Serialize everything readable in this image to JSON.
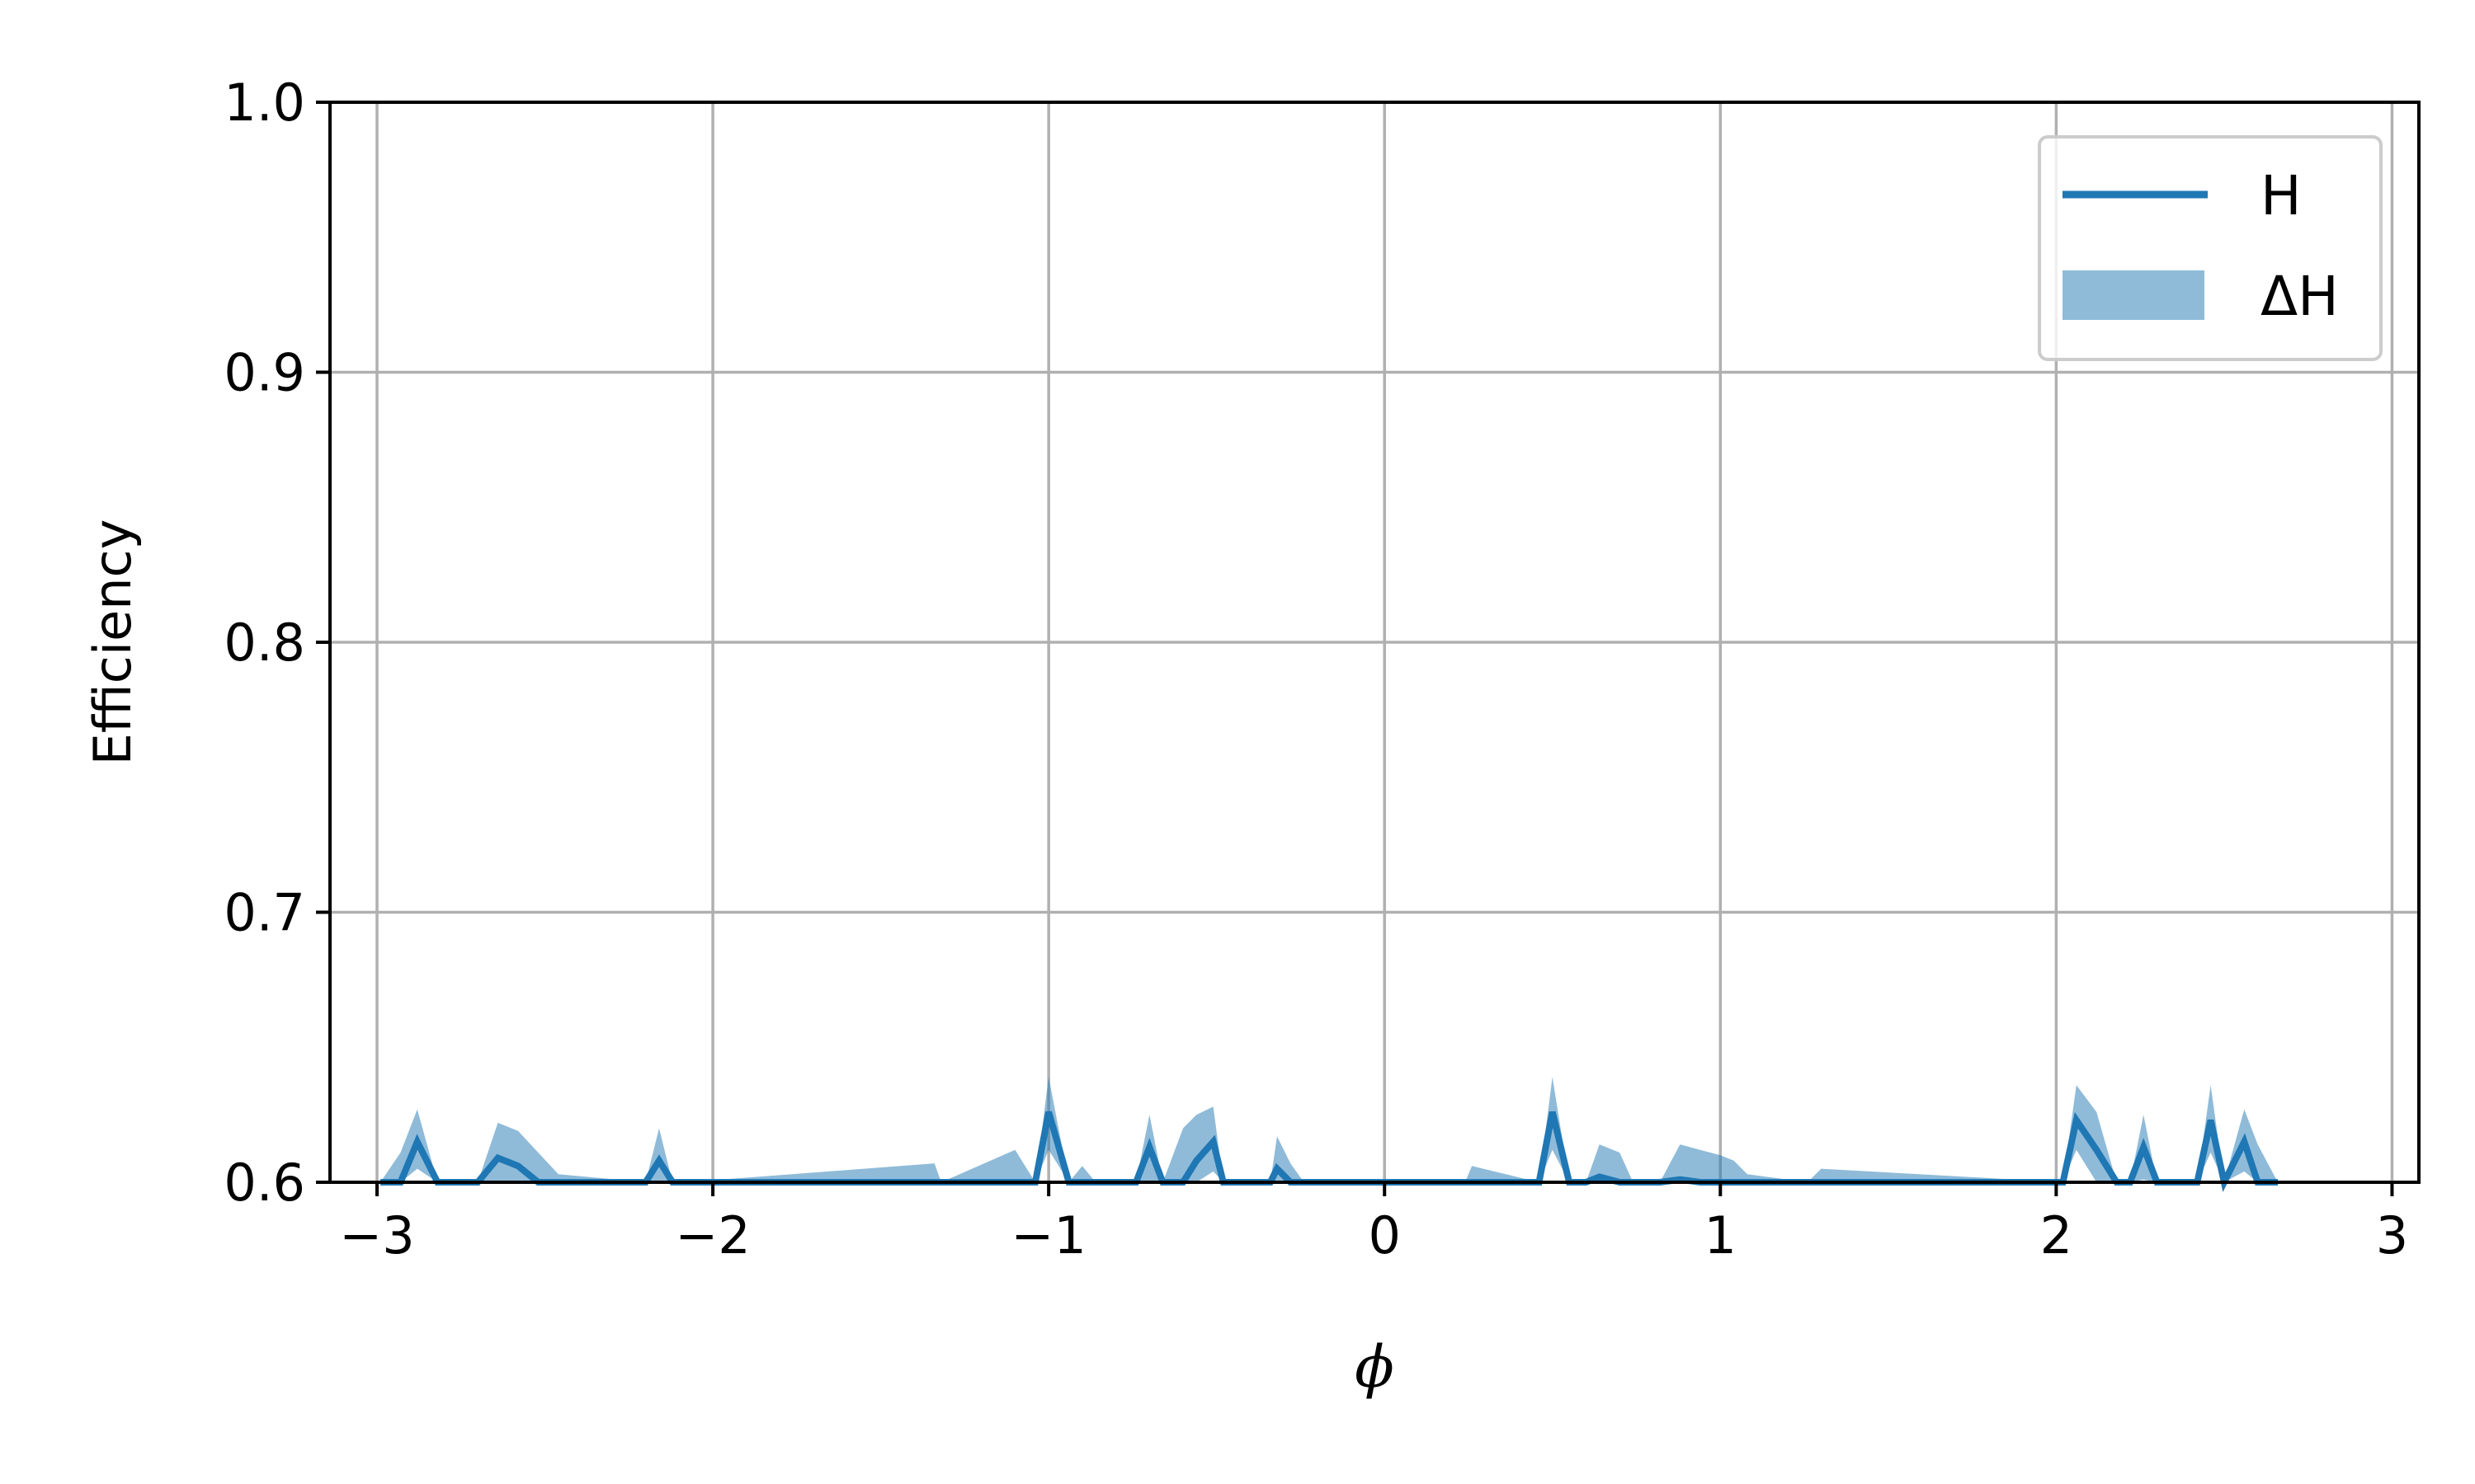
{
  "chart_data": {
    "type": "line",
    "xlabel": "ϕ",
    "ylabel": "Efficiency",
    "xlim": [
      -3.14,
      3.08
    ],
    "ylim": [
      0.6,
      1.0
    ],
    "x_ticks": [
      -3,
      -2,
      -1,
      0,
      1,
      2,
      3
    ],
    "x_tick_labels": [
      "−3",
      "−2",
      "−1",
      "0",
      "1",
      "2",
      "3"
    ],
    "y_ticks": [
      0.6,
      0.7,
      0.8,
      0.9,
      1.0
    ],
    "y_tick_labels": [
      "0.6",
      "0.7",
      "0.8",
      "0.9",
      "1.0"
    ],
    "grid": true,
    "legend": {
      "position": "top-right",
      "entries": [
        {
          "label": "H",
          "kind": "line"
        },
        {
          "label": "ΔH",
          "kind": "band"
        }
      ]
    },
    "colors": {
      "line": "#1f77b4",
      "band": "#1f77b4",
      "grid": "#b0b0b0"
    },
    "x": [
      -2.99,
      -2.93,
      -2.88,
      -2.82,
      -2.76,
      -2.7,
      -2.64,
      -2.58,
      -2.52,
      -2.46,
      -2.2,
      -2.16,
      -2.12,
      -2.08,
      -1.34,
      -1.32,
      -1.1,
      -1.04,
      -1.0,
      -0.94,
      -0.9,
      -0.86,
      -0.74,
      -0.7,
      -0.66,
      -0.6,
      -0.56,
      -0.51,
      -0.48,
      -0.34,
      -0.32,
      -0.28,
      -0.24,
      0.24,
      0.26,
      0.46,
      0.5,
      0.55,
      0.6,
      0.64,
      0.7,
      0.74,
      0.82,
      0.88,
      0.94,
      1.0,
      1.04,
      1.08,
      1.26,
      1.3,
      2.02,
      2.06,
      2.12,
      2.18,
      2.22,
      2.26,
      2.3,
      2.42,
      2.46,
      2.5,
      2.56,
      2.6,
      2.66
    ],
    "series": [
      {
        "name": "H",
        "values": [
          0.6,
          0.6,
          0.615,
          0.6,
          0.6,
          0.6,
          0.609,
          0.606,
          0.6,
          0.6,
          0.6,
          0.608,
          0.6,
          0.6,
          0.6,
          0.6,
          0.6,
          0.6,
          0.626,
          0.6,
          0.6,
          0.6,
          0.6,
          0.613,
          0.6,
          0.6,
          0.608,
          0.615,
          0.6,
          0.6,
          0.605,
          0.6,
          0.6,
          0.6,
          0.6,
          0.6,
          0.626,
          0.6,
          0.6,
          0.602,
          0.6,
          0.6,
          0.6,
          0.601,
          0.6,
          0.6,
          0.6,
          0.6,
          0.6,
          0.6,
          0.6,
          0.623,
          0.612,
          0.6,
          0.6,
          0.613,
          0.6,
          0.6,
          0.623,
          0.6,
          0.615,
          0.6,
          0.6
        ]
      },
      {
        "name": "ΔH",
        "lower": [
          0.6,
          0.6,
          0.605,
          0.6,
          0.6,
          0.6,
          0.6,
          0.6,
          0.6,
          0.6,
          0.6,
          0.6,
          0.6,
          0.6,
          0.6,
          0.6,
          0.6,
          0.6,
          0.612,
          0.6,
          0.6,
          0.6,
          0.6,
          0.6,
          0.6,
          0.6,
          0.6,
          0.604,
          0.6,
          0.6,
          0.6,
          0.6,
          0.6,
          0.6,
          0.6,
          0.6,
          0.612,
          0.6,
          0.6,
          0.6,
          0.6,
          0.6,
          0.6,
          0.6,
          0.6,
          0.6,
          0.6,
          0.6,
          0.6,
          0.6,
          0.6,
          0.612,
          0.6,
          0.6,
          0.6,
          0.601,
          0.6,
          0.6,
          0.611,
          0.6,
          0.604,
          0.6,
          0.6
        ],
        "upper": [
          0.6,
          0.611,
          0.627,
          0.6,
          0.6,
          0.6,
          0.622,
          0.619,
          0.611,
          0.603,
          0.6,
          0.62,
          0.6,
          0.6,
          0.607,
          0.6,
          0.612,
          0.6,
          0.639,
          0.6,
          0.606,
          0.6,
          0.6,
          0.625,
          0.6,
          0.62,
          0.625,
          0.628,
          0.6,
          0.6,
          0.617,
          0.607,
          0.6,
          0.6,
          0.606,
          0.6,
          0.639,
          0.6,
          0.6,
          0.614,
          0.611,
          0.6,
          0.6,
          0.614,
          0.612,
          0.61,
          0.608,
          0.603,
          0.6,
          0.605,
          0.6,
          0.636,
          0.626,
          0.6,
          0.6,
          0.625,
          0.6,
          0.6,
          0.636,
          0.6,
          0.627,
          0.614,
          0.6
        ]
      }
    ]
  }
}
